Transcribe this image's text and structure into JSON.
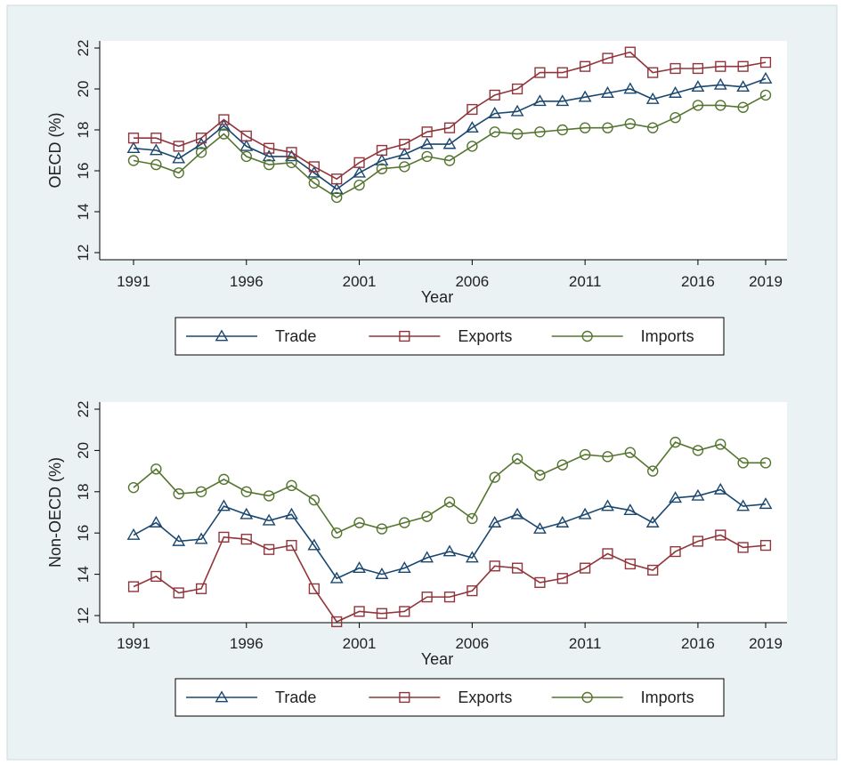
{
  "chart_data": [
    {
      "type": "line",
      "title": "",
      "xlabel": "Year",
      "ylabel": "OECD (%)",
      "ylim": [
        12,
        22
      ],
      "yticks": [
        12,
        14,
        16,
        18,
        20,
        22
      ],
      "xlim": [
        1991,
        2019
      ],
      "xticks": [
        1991,
        1996,
        2001,
        2006,
        2011,
        2016,
        2019
      ],
      "grid": false,
      "legend": "bottom",
      "x": [
        1991,
        1992,
        1993,
        1994,
        1995,
        1996,
        1997,
        1998,
        1999,
        2000,
        2001,
        2002,
        2003,
        2004,
        2005,
        2006,
        2007,
        2008,
        2009,
        2010,
        2011,
        2012,
        2013,
        2014,
        2015,
        2016,
        2017,
        2018,
        2019
      ],
      "series": [
        {
          "name": "Trade",
          "color": "#1a476f",
          "marker": "triangle",
          "values": [
            17.1,
            17.0,
            16.6,
            17.3,
            18.2,
            17.2,
            16.7,
            16.7,
            15.9,
            15.1,
            15.9,
            16.5,
            16.8,
            17.3,
            17.3,
            18.1,
            18.8,
            18.9,
            19.4,
            19.4,
            19.6,
            19.8,
            20.0,
            19.5,
            19.8,
            20.1,
            20.2,
            20.1,
            20.5
          ]
        },
        {
          "name": "Exports",
          "color": "#90353b",
          "marker": "square",
          "values": [
            17.6,
            17.6,
            17.2,
            17.6,
            18.5,
            17.7,
            17.1,
            16.9,
            16.2,
            15.6,
            16.4,
            17.0,
            17.3,
            17.9,
            18.1,
            19.0,
            19.7,
            20.0,
            20.8,
            20.8,
            21.1,
            21.5,
            21.8,
            20.8,
            21.0,
            21.0,
            21.1,
            21.1,
            21.3
          ]
        },
        {
          "name": "Imports",
          "color": "#55752f",
          "marker": "circle",
          "values": [
            16.5,
            16.3,
            15.9,
            16.9,
            17.8,
            16.7,
            16.3,
            16.4,
            15.4,
            14.7,
            15.3,
            16.1,
            16.2,
            16.7,
            16.5,
            17.2,
            17.9,
            17.8,
            17.9,
            18.0,
            18.1,
            18.1,
            18.3,
            18.1,
            18.6,
            19.2,
            19.2,
            19.1,
            19.7
          ]
        }
      ]
    },
    {
      "type": "line",
      "title": "",
      "xlabel": "Year",
      "ylabel": "Non-OECD (%)",
      "ylim": [
        12,
        22
      ],
      "yticks": [
        12,
        14,
        16,
        18,
        20,
        22
      ],
      "xlim": [
        1991,
        2019
      ],
      "xticks": [
        1991,
        1996,
        2001,
        2006,
        2011,
        2016,
        2019
      ],
      "grid": false,
      "legend": "bottom",
      "x": [
        1991,
        1992,
        1993,
        1994,
        1995,
        1996,
        1997,
        1998,
        1999,
        2000,
        2001,
        2002,
        2003,
        2004,
        2005,
        2006,
        2007,
        2008,
        2009,
        2010,
        2011,
        2012,
        2013,
        2014,
        2015,
        2016,
        2017,
        2018,
        2019
      ],
      "series": [
        {
          "name": "Trade",
          "color": "#1a476f",
          "marker": "triangle",
          "values": [
            15.9,
            16.5,
            15.6,
            15.7,
            17.3,
            16.9,
            16.6,
            16.9,
            15.4,
            13.8,
            14.3,
            14.0,
            14.3,
            14.8,
            15.1,
            14.8,
            16.5,
            16.9,
            16.2,
            16.5,
            16.9,
            17.3,
            17.1,
            16.5,
            17.7,
            17.8,
            18.1,
            17.3,
            17.4
          ]
        },
        {
          "name": "Exports",
          "color": "#90353b",
          "marker": "square",
          "values": [
            13.4,
            13.9,
            13.1,
            13.3,
            15.8,
            15.7,
            15.2,
            15.4,
            13.3,
            11.7,
            12.2,
            12.1,
            12.2,
            12.9,
            12.9,
            13.2,
            14.4,
            14.3,
            13.6,
            13.8,
            14.3,
            15.0,
            14.5,
            14.2,
            15.1,
            15.6,
            15.9,
            15.3,
            15.4
          ]
        },
        {
          "name": "Imports",
          "color": "#55752f",
          "marker": "circle",
          "values": [
            18.2,
            19.1,
            17.9,
            18.0,
            18.6,
            18.0,
            17.8,
            18.3,
            17.6,
            16.0,
            16.5,
            16.2,
            16.5,
            16.8,
            17.5,
            16.7,
            18.7,
            19.6,
            18.8,
            19.3,
            19.8,
            19.7,
            19.9,
            19.0,
            20.4,
            20.0,
            20.3,
            19.4,
            19.4
          ]
        }
      ]
    }
  ]
}
